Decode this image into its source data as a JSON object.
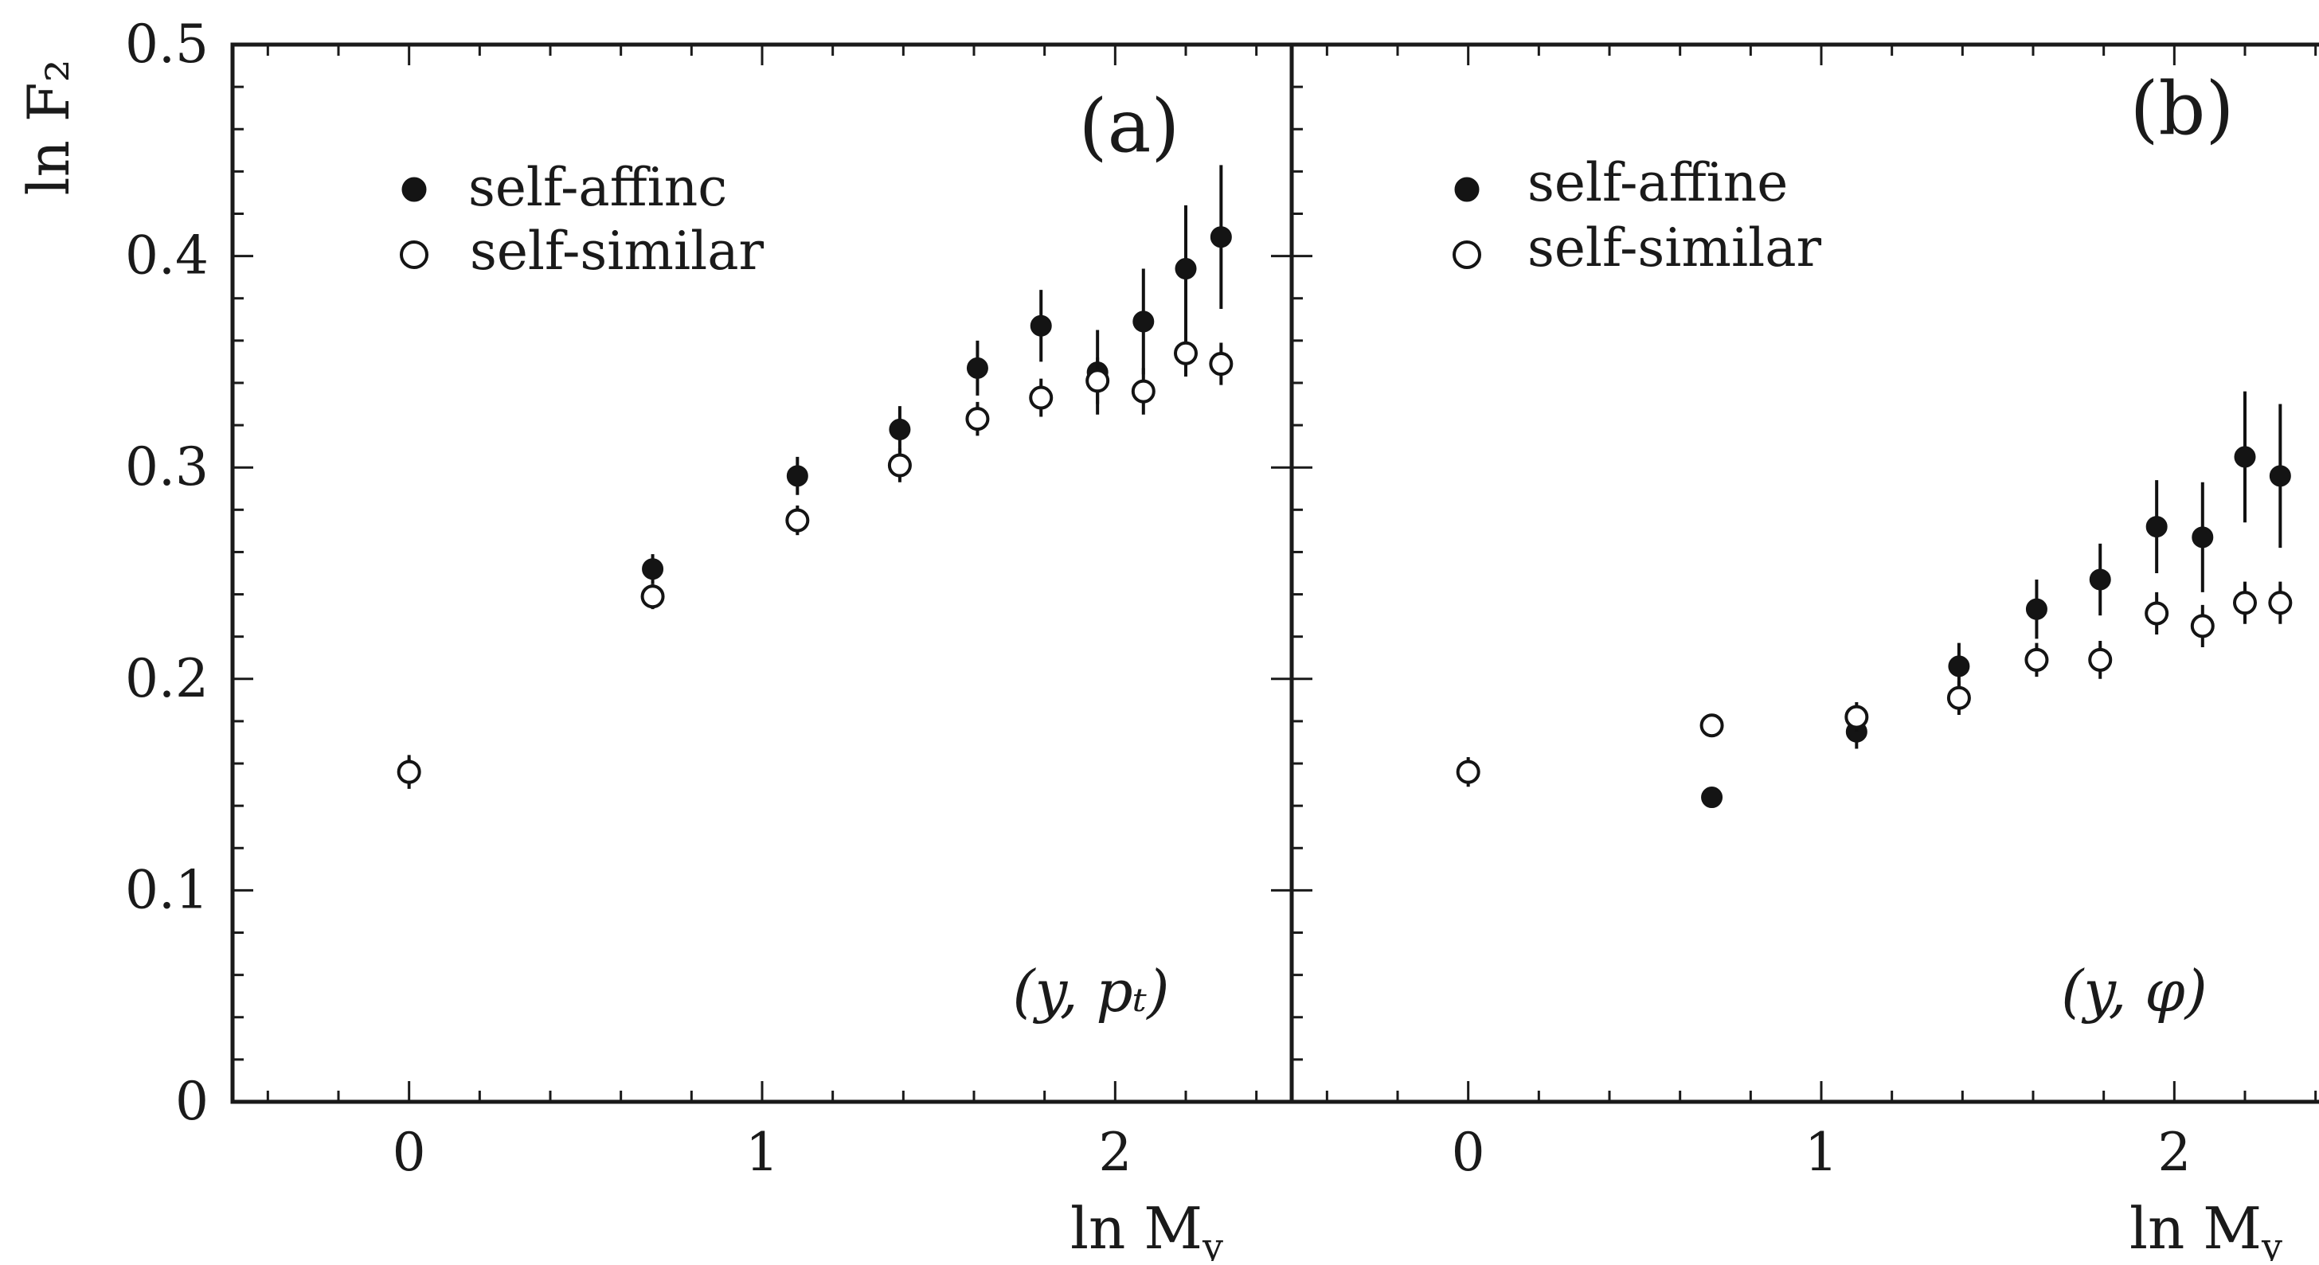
{
  "chart_data": {
    "type": "scatter",
    "ylabel": "ln F₂",
    "xlabel": "ln M",
    "xlabel_sub": "y",
    "xlim": [
      -0.5,
      2.5
    ],
    "ylim": [
      0,
      0.5
    ],
    "y_ticks": [
      "0",
      "0.1",
      "0.2",
      "0.3",
      "0.4",
      "0.5"
    ],
    "x_ticks": [
      "0",
      "1",
      "2"
    ],
    "legend_position": "top-left",
    "panels": [
      {
        "label": "(a)",
        "corner_label": "(y, pₜ)",
        "series": [
          {
            "name": "self-affinc",
            "marker": "filled-circle",
            "points": [
              {
                "x": 0.0,
                "y": 0.156,
                "err": 0.008
              },
              {
                "x": 0.69,
                "y": 0.252,
                "err": 0.007
              },
              {
                "x": 1.1,
                "y": 0.296,
                "err": 0.009
              },
              {
                "x": 1.39,
                "y": 0.318,
                "err": 0.011
              },
              {
                "x": 1.61,
                "y": 0.347,
                "err": 0.013
              },
              {
                "x": 1.79,
                "y": 0.367,
                "err": 0.017
              },
              {
                "x": 1.95,
                "y": 0.345,
                "err": 0.02
              },
              {
                "x": 2.08,
                "y": 0.369,
                "err": 0.025
              },
              {
                "x": 2.2,
                "y": 0.394,
                "err": 0.03
              },
              {
                "x": 2.3,
                "y": 0.409,
                "err": 0.034
              }
            ]
          },
          {
            "name": "self-similar",
            "marker": "open-circle",
            "points": [
              {
                "x": 0.0,
                "y": 0.156,
                "err": 0.006
              },
              {
                "x": 0.69,
                "y": 0.239,
                "err": 0.006
              },
              {
                "x": 1.1,
                "y": 0.275,
                "err": 0.007
              },
              {
                "x": 1.39,
                "y": 0.301,
                "err": 0.008
              },
              {
                "x": 1.61,
                "y": 0.323,
                "err": 0.008
              },
              {
                "x": 1.79,
                "y": 0.333,
                "err": 0.009
              },
              {
                "x": 1.95,
                "y": 0.341,
                "err": 0.011
              },
              {
                "x": 2.08,
                "y": 0.336,
                "err": 0.011
              },
              {
                "x": 2.2,
                "y": 0.354,
                "err": 0.011
              },
              {
                "x": 2.3,
                "y": 0.349,
                "err": 0.01
              }
            ]
          }
        ]
      },
      {
        "label": "(b)",
        "corner_label": "(y, φ)",
        "series": [
          {
            "name": "self-affine",
            "marker": "filled-circle",
            "points": [
              {
                "x": 0.0,
                "y": 0.156,
                "err": 0.007
              },
              {
                "x": 0.69,
                "y": 0.144,
                "err": 0.004
              },
              {
                "x": 1.1,
                "y": 0.175,
                "err": 0.008
              },
              {
                "x": 1.39,
                "y": 0.206,
                "err": 0.011
              },
              {
                "x": 1.61,
                "y": 0.233,
                "err": 0.014
              },
              {
                "x": 1.79,
                "y": 0.247,
                "err": 0.017
              },
              {
                "x": 1.95,
                "y": 0.272,
                "err": 0.022
              },
              {
                "x": 2.08,
                "y": 0.267,
                "err": 0.026
              },
              {
                "x": 2.2,
                "y": 0.305,
                "err": 0.031
              },
              {
                "x": 2.3,
                "y": 0.296,
                "err": 0.034
              }
            ]
          },
          {
            "name": "self-similar",
            "marker": "open-circle",
            "points": [
              {
                "x": 0.0,
                "y": 0.156,
                "err": 0.005
              },
              {
                "x": 0.69,
                "y": 0.178,
                "err": 0.005
              },
              {
                "x": 1.1,
                "y": 0.182,
                "err": 0.007
              },
              {
                "x": 1.39,
                "y": 0.191,
                "err": 0.008
              },
              {
                "x": 1.61,
                "y": 0.209,
                "err": 0.008
              },
              {
                "x": 1.79,
                "y": 0.209,
                "err": 0.009
              },
              {
                "x": 1.95,
                "y": 0.231,
                "err": 0.01
              },
              {
                "x": 2.08,
                "y": 0.225,
                "err": 0.01
              },
              {
                "x": 2.2,
                "y": 0.236,
                "err": 0.01
              },
              {
                "x": 2.3,
                "y": 0.236,
                "err": 0.01
              }
            ]
          }
        ]
      }
    ]
  }
}
